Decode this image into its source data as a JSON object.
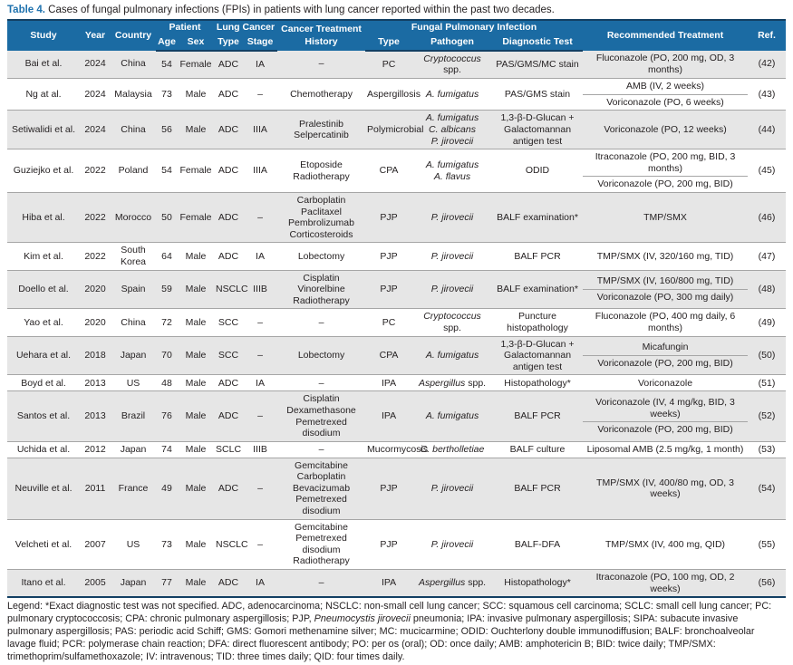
{
  "title": {
    "label": "Table 4.",
    "text": " Cases of fungal pulmonary infections (FPIs) in patients with lung cancer reported within the past two decades."
  },
  "colors": {
    "header_bg": "#1b6ba3",
    "accent": "#1f72ae",
    "navy": "#123f63",
    "row_alt": "#e6e6e6",
    "row_line": "#a6a6a6"
  },
  "header": {
    "study": "Study",
    "year": "Year",
    "country": "Country",
    "patient": "Patient",
    "age": "Age",
    "sex": "Sex",
    "lung_cancer": "Lung Cancer",
    "lc_type": "Type",
    "lc_stage": "Stage",
    "history": "Cancer Treatment History",
    "fpi": "Fungal Pulmonary Infection",
    "fpi_type": "Type",
    "pathogen": "Pathogen",
    "diagnostic": "Diagnostic Test",
    "treatment": "Recommended Treatment",
    "ref": "Ref."
  },
  "rows": [
    {
      "study": "Bai et al.",
      "year": "2024",
      "country": "China",
      "age": "54",
      "sex": "Female",
      "lc_type": "ADC",
      "lc_stage": "IA",
      "history": [
        "–"
      ],
      "fpi_type": "PC",
      "pathogens": [
        {
          "name": "Cryptococcus",
          "suffix": " spp."
        }
      ],
      "diagnostic": "PAS/GMS/MC stain",
      "treatments": [
        "Fluconazole (PO, 200 mg, OD, 3 months)"
      ],
      "ref": "(42)"
    },
    {
      "study": "Ng at al.",
      "year": "2024",
      "country": "Malaysia",
      "age": "73",
      "sex": "Male",
      "lc_type": "ADC",
      "lc_stage": "–",
      "history": [
        "Chemotherapy"
      ],
      "fpi_type": "Aspergillosis",
      "pathogens": [
        {
          "name": "A. fumigatus",
          "suffix": ""
        }
      ],
      "diagnostic": "PAS/GMS stain",
      "treatments": [
        "AMB (IV, 2 weeks)",
        "Voriconazole (PO, 6 weeks)"
      ],
      "ref": "(43)"
    },
    {
      "study": "Setiwalidi et al.",
      "year": "2024",
      "country": "China",
      "age": "56",
      "sex": "Male",
      "lc_type": "ADC",
      "lc_stage": "IIIA",
      "history": [
        "Pralestinib",
        "Selpercatinib"
      ],
      "fpi_type": "Polymicrobial",
      "pathogens": [
        {
          "name": "A. fumigatus",
          "suffix": ""
        },
        {
          "name": "C. albicans",
          "suffix": ""
        },
        {
          "name": "P. jirovecii",
          "suffix": ""
        }
      ],
      "diagnostic": "1,3-β-D-Glucan + Galactomannan antigen test",
      "treatments": [
        "Voriconazole (PO, 12 weeks)"
      ],
      "ref": "(44)"
    },
    {
      "study": "Guziejko et al.",
      "year": "2022",
      "country": "Poland",
      "age": "54",
      "sex": "Female",
      "lc_type": "ADC",
      "lc_stage": "IIIA",
      "history": [
        "Etoposide",
        "Radiotherapy"
      ],
      "fpi_type": "CPA",
      "pathogens": [
        {
          "name": "A. fumigatus",
          "suffix": ""
        },
        {
          "name": "A. flavus",
          "suffix": ""
        }
      ],
      "diagnostic": "ODID",
      "treatments": [
        "Itraconazole (PO, 200 mg, BID, 3 months)",
        "Voriconazole (PO, 200 mg, BID)"
      ],
      "ref": "(45)"
    },
    {
      "study": "Hiba et al.",
      "year": "2022",
      "country": "Morocco",
      "age": "50",
      "sex": "Female",
      "lc_type": "ADC",
      "lc_stage": "–",
      "history": [
        "Carboplatin",
        "Paclitaxel",
        "Pembrolizumab",
        "Corticosteroids"
      ],
      "fpi_type": "PJP",
      "pathogens": [
        {
          "name": "P. jirovecii",
          "suffix": ""
        }
      ],
      "diagnostic": "BALF examination*",
      "treatments": [
        "TMP/SMX"
      ],
      "ref": "(46)"
    },
    {
      "study": "Kim et al.",
      "year": "2022",
      "country": "South Korea",
      "age": "64",
      "sex": "Male",
      "lc_type": "ADC",
      "lc_stage": "IA",
      "history": [
        "Lobectomy"
      ],
      "fpi_type": "PJP",
      "pathogens": [
        {
          "name": "P. jirovecii",
          "suffix": ""
        }
      ],
      "diagnostic": "BALF PCR",
      "treatments": [
        "TMP/SMX (IV, 320/160 mg, TID)"
      ],
      "ref": "(47)"
    },
    {
      "study": "Doello et al.",
      "year": "2020",
      "country": "Spain",
      "age": "59",
      "sex": "Male",
      "lc_type": "NSCLC",
      "lc_stage": "IIIB",
      "history": [
        "Cisplatin",
        "Vinorelbine",
        "Radiotherapy"
      ],
      "fpi_type": "PJP",
      "pathogens": [
        {
          "name": "P. jirovecii",
          "suffix": ""
        }
      ],
      "diagnostic": "BALF examination*",
      "treatments": [
        "TMP/SMX (IV, 160/800 mg, TID)",
        "Voriconazole (PO, 300 mg daily)"
      ],
      "ref": "(48)"
    },
    {
      "study": "Yao et al.",
      "year": "2020",
      "country": "China",
      "age": "72",
      "sex": "Male",
      "lc_type": "SCC",
      "lc_stage": "–",
      "history": [
        "–"
      ],
      "fpi_type": "PC",
      "pathogens": [
        {
          "name": "Cryptococcus",
          "suffix": " spp."
        }
      ],
      "diagnostic": "Puncture histopathology",
      "treatments": [
        "Fluconazole (PO, 400 mg daily, 6 months)"
      ],
      "ref": "(49)"
    },
    {
      "study": "Uehara et al.",
      "year": "2018",
      "country": "Japan",
      "age": "70",
      "sex": "Male",
      "lc_type": "SCC",
      "lc_stage": "–",
      "history": [
        "Lobectomy"
      ],
      "fpi_type": "CPA",
      "pathogens": [
        {
          "name": "A. fumigatus",
          "suffix": ""
        }
      ],
      "diagnostic": "1,3-β-D-Glucan + Galactomannan antigen test",
      "treatments": [
        "Micafungin",
        "Voriconazole (PO, 200 mg, BID)"
      ],
      "ref": "(50)"
    },
    {
      "study": "Boyd et al.",
      "year": "2013",
      "country": "US",
      "age": "48",
      "sex": "Male",
      "lc_type": "ADC",
      "lc_stage": "IA",
      "history": [
        "–"
      ],
      "fpi_type": "IPA",
      "pathogens": [
        {
          "name": "Aspergillus",
          "suffix": " spp."
        }
      ],
      "diagnostic": "Histopathology*",
      "treatments": [
        "Voriconazole"
      ],
      "ref": "(51)"
    },
    {
      "study": "Santos et al.",
      "year": "2013",
      "country": "Brazil",
      "age": "76",
      "sex": "Male",
      "lc_type": "ADC",
      "lc_stage": "–",
      "history": [
        "Cisplatin",
        "Dexamethasone",
        "Pemetrexed disodium"
      ],
      "fpi_type": "IPA",
      "pathogens": [
        {
          "name": "A. fumigatus",
          "suffix": ""
        }
      ],
      "diagnostic": "BALF PCR",
      "treatments": [
        "Voriconazole (IV, 4 mg/kg, BID, 3 weeks)",
        "Voriconazole (PO, 200 mg, BID)"
      ],
      "ref": "(52)"
    },
    {
      "study": "Uchida et al.",
      "year": "2012",
      "country": "Japan",
      "age": "74",
      "sex": "Male",
      "lc_type": "SCLC",
      "lc_stage": "IIIB",
      "history": [
        "–"
      ],
      "fpi_type": "Mucormycosis",
      "pathogens": [
        {
          "name": "C. bertholletiae",
          "suffix": ""
        }
      ],
      "diagnostic": "BALF culture",
      "treatments": [
        "Liposomal AMB (2.5 mg/kg, 1 month)"
      ],
      "ref": "(53)"
    },
    {
      "study": "Neuville et al.",
      "year": "2011",
      "country": "France",
      "age": "49",
      "sex": "Male",
      "lc_type": "ADC",
      "lc_stage": "–",
      "history": [
        "Gemcitabine",
        "Carboplatin",
        "Bevacizumab",
        "Pemetrexed disodium"
      ],
      "fpi_type": "PJP",
      "pathogens": [
        {
          "name": "P. jirovecii",
          "suffix": ""
        }
      ],
      "diagnostic": "BALF PCR",
      "treatments": [
        "TMP/SMX (IV, 400/80 mg, OD, 3 weeks)"
      ],
      "ref": "(54)"
    },
    {
      "study": "Velcheti et al.",
      "year": "2007",
      "country": "US",
      "age": "73",
      "sex": "Male",
      "lc_type": "NSCLC",
      "lc_stage": "–",
      "history": [
        "Gemcitabine",
        "Pemetrexed",
        "disodium",
        "Radiotherapy"
      ],
      "fpi_type": "PJP",
      "pathogens": [
        {
          "name": "P. jirovecii",
          "suffix": ""
        }
      ],
      "diagnostic": "BALF-DFA",
      "treatments": [
        "TMP/SMX (IV, 400 mg, QID)"
      ],
      "ref": "(55)"
    },
    {
      "study": "Itano et al.",
      "year": "2005",
      "country": "Japan",
      "age": "77",
      "sex": "Male",
      "lc_type": "ADC",
      "lc_stage": "IA",
      "history": [
        "–"
      ],
      "fpi_type": "IPA",
      "pathogens": [
        {
          "name": "Aspergillus",
          "suffix": " spp."
        }
      ],
      "diagnostic": "Histopathology*",
      "treatments": [
        "Itraconazole (PO, 100 mg, OD, 2 weeks)"
      ],
      "ref": "(56)"
    }
  ],
  "legend": [
    {
      "t": "Legend: *Exact diagnostic test was not specified. ADC, adenocarcinoma; NSCLC: non-small cell lung cancer; SCC: squamous cell carcinoma; SCLC: small cell lung cancer; PC: pulmonary cryptococcosis; CPA: chronic pulmonary aspergillosis; PJP, "
    },
    {
      "t": "Pneumocystis jirovecii",
      "i": true
    },
    {
      "t": " pneumonia; IPA: invasive pulmonary aspergillosis; SIPA: subacute invasive pulmonary aspergillosis; PAS: periodic acid Schiff; GMS: Gomori methenamine silver; MC: mucicarmine; ODID: Ouchterlony double immunodiffusion; BALF: bronchoalveolar lavage fluid; PCR: polymerase chain reaction; DFA: direct fluorescent antibody; PO: per os (oral); OD: once daily; AMB: amphotericin B; BID: twice daily; TMP/SMX: trimethoprim/sulfamethoxazole; IV: intravenous; TID: three times daily; QID: four times daily."
    }
  ]
}
